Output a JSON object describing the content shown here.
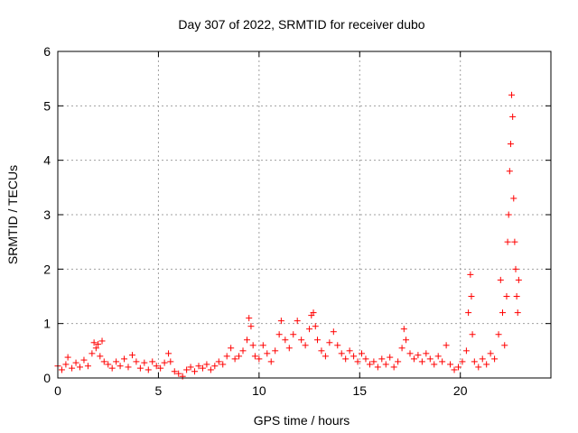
{
  "chart_data": {
    "type": "scatter",
    "title": "Day 307 of 2022, SRMTID for receiver dubo",
    "xlabel": "GPS time / hours",
    "ylabel": "SRMTID / TECUs",
    "xlim": [
      0,
      24.5
    ],
    "ylim": [
      0,
      6
    ],
    "xticks": [
      0,
      5,
      10,
      15,
      20
    ],
    "yticks": [
      0,
      1,
      2,
      3,
      4,
      5,
      6
    ],
    "xtick_labels": [
      "0",
      "5",
      "10",
      "15",
      "20"
    ],
    "ytick_labels": [
      "0",
      "1",
      "2",
      "3",
      "4",
      "5",
      "6"
    ],
    "grid": true,
    "marker": "+",
    "color": "#ff0000",
    "series": [
      {
        "name": "SRMTID",
        "points": [
          [
            0.0,
            0.22
          ],
          [
            0.2,
            0.15
          ],
          [
            0.4,
            0.25
          ],
          [
            0.5,
            0.38
          ],
          [
            0.7,
            0.18
          ],
          [
            0.9,
            0.28
          ],
          [
            1.1,
            0.2
          ],
          [
            1.3,
            0.33
          ],
          [
            1.5,
            0.22
          ],
          [
            1.7,
            0.45
          ],
          [
            1.8,
            0.65
          ],
          [
            1.9,
            0.55
          ],
          [
            2.0,
            0.62
          ],
          [
            2.1,
            0.4
          ],
          [
            2.2,
            0.68
          ],
          [
            2.3,
            0.3
          ],
          [
            2.5,
            0.25
          ],
          [
            2.7,
            0.18
          ],
          [
            2.9,
            0.3
          ],
          [
            3.1,
            0.22
          ],
          [
            3.3,
            0.35
          ],
          [
            3.5,
            0.2
          ],
          [
            3.7,
            0.42
          ],
          [
            3.9,
            0.3
          ],
          [
            4.1,
            0.18
          ],
          [
            4.3,
            0.28
          ],
          [
            4.5,
            0.15
          ],
          [
            4.7,
            0.3
          ],
          [
            4.9,
            0.22
          ],
          [
            5.1,
            0.18
          ],
          [
            5.3,
            0.28
          ],
          [
            5.5,
            0.45
          ],
          [
            5.6,
            0.3
          ],
          [
            5.8,
            0.12
          ],
          [
            6.0,
            0.08
          ],
          [
            6.2,
            0.03
          ],
          [
            6.4,
            0.15
          ],
          [
            6.6,
            0.2
          ],
          [
            6.8,
            0.12
          ],
          [
            7.0,
            0.22
          ],
          [
            7.2,
            0.18
          ],
          [
            7.4,
            0.25
          ],
          [
            7.6,
            0.15
          ],
          [
            7.8,
            0.22
          ],
          [
            8.0,
            0.3
          ],
          [
            8.2,
            0.25
          ],
          [
            8.4,
            0.4
          ],
          [
            8.6,
            0.55
          ],
          [
            8.8,
            0.35
          ],
          [
            9.0,
            0.4
          ],
          [
            9.2,
            0.5
          ],
          [
            9.4,
            0.7
          ],
          [
            9.5,
            1.1
          ],
          [
            9.6,
            0.95
          ],
          [
            9.7,
            0.6
          ],
          [
            9.8,
            0.4
          ],
          [
            10.0,
            0.35
          ],
          [
            10.2,
            0.6
          ],
          [
            10.4,
            0.45
          ],
          [
            10.6,
            0.3
          ],
          [
            10.8,
            0.5
          ],
          [
            11.0,
            0.8
          ],
          [
            11.1,
            1.05
          ],
          [
            11.3,
            0.7
          ],
          [
            11.5,
            0.55
          ],
          [
            11.7,
            0.8
          ],
          [
            11.9,
            1.05
          ],
          [
            12.1,
            0.7
          ],
          [
            12.3,
            0.6
          ],
          [
            12.5,
            0.9
          ],
          [
            12.6,
            1.15
          ],
          [
            12.7,
            1.2
          ],
          [
            12.8,
            0.95
          ],
          [
            12.9,
            0.7
          ],
          [
            13.1,
            0.5
          ],
          [
            13.3,
            0.4
          ],
          [
            13.5,
            0.65
          ],
          [
            13.7,
            0.85
          ],
          [
            13.9,
            0.6
          ],
          [
            14.1,
            0.45
          ],
          [
            14.3,
            0.35
          ],
          [
            14.5,
            0.5
          ],
          [
            14.7,
            0.4
          ],
          [
            14.9,
            0.3
          ],
          [
            15.1,
            0.45
          ],
          [
            15.3,
            0.35
          ],
          [
            15.5,
            0.25
          ],
          [
            15.7,
            0.3
          ],
          [
            15.9,
            0.2
          ],
          [
            16.1,
            0.35
          ],
          [
            16.3,
            0.25
          ],
          [
            16.5,
            0.38
          ],
          [
            16.7,
            0.2
          ],
          [
            16.9,
            0.3
          ],
          [
            17.1,
            0.55
          ],
          [
            17.2,
            0.9
          ],
          [
            17.3,
            0.7
          ],
          [
            17.5,
            0.45
          ],
          [
            17.7,
            0.35
          ],
          [
            17.9,
            0.42
          ],
          [
            18.1,
            0.3
          ],
          [
            18.3,
            0.45
          ],
          [
            18.5,
            0.35
          ],
          [
            18.7,
            0.25
          ],
          [
            18.9,
            0.4
          ],
          [
            19.1,
            0.3
          ],
          [
            19.3,
            0.6
          ],
          [
            19.5,
            0.25
          ],
          [
            19.7,
            0.15
          ],
          [
            19.9,
            0.2
          ],
          [
            20.1,
            0.3
          ],
          [
            20.3,
            0.5
          ],
          [
            20.4,
            1.2
          ],
          [
            20.5,
            1.9
          ],
          [
            20.55,
            1.5
          ],
          [
            20.6,
            0.8
          ],
          [
            20.7,
            0.3
          ],
          [
            20.9,
            0.2
          ],
          [
            21.1,
            0.35
          ],
          [
            21.3,
            0.25
          ],
          [
            21.5,
            0.45
          ],
          [
            21.7,
            0.35
          ],
          [
            21.9,
            0.8
          ],
          [
            22.0,
            1.8
          ],
          [
            22.1,
            1.2
          ],
          [
            22.2,
            0.6
          ],
          [
            22.3,
            1.5
          ],
          [
            22.35,
            2.5
          ],
          [
            22.4,
            3.0
          ],
          [
            22.45,
            3.8
          ],
          [
            22.5,
            4.3
          ],
          [
            22.55,
            5.2
          ],
          [
            22.6,
            4.8
          ],
          [
            22.65,
            3.3
          ],
          [
            22.7,
            2.5
          ],
          [
            22.75,
            2.0
          ],
          [
            22.8,
            1.5
          ],
          [
            22.85,
            1.2
          ],
          [
            22.9,
            1.8
          ]
        ]
      }
    ]
  }
}
